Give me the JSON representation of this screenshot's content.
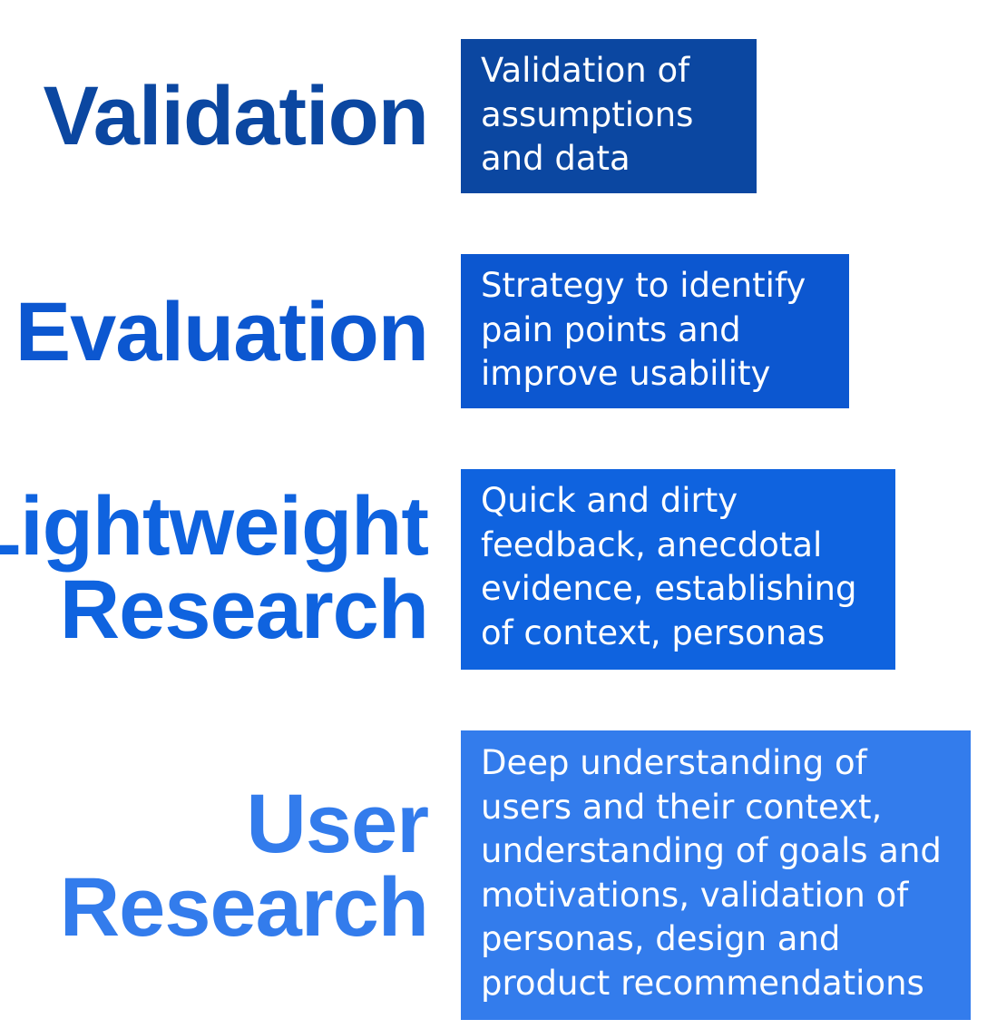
{
  "rows": [
    {
      "title_lines": [
        "Validation"
      ],
      "description_lines": [
        "Validation of",
        "assumptions",
        "and data"
      ],
      "color": "#0b47a1"
    },
    {
      "title_lines": [
        "Evaluation"
      ],
      "description_lines": [
        "Strategy to identify",
        "pain points and",
        "improve usability"
      ],
      "color": "#0c57d0"
    },
    {
      "title_lines": [
        "Lightweight",
        "Research"
      ],
      "description_lines": [
        "Quick and dirty",
        "feedback, anecdotal",
        "evidence, establishing",
        "of context, personas"
      ],
      "color": "#0f63df"
    },
    {
      "title_lines": [
        "User",
        "Research"
      ],
      "description_lines": [
        "Deep understanding of",
        "users and their context,",
        "understanding of goals and",
        "motivations, validation of",
        "personas, design and",
        "product recommendations"
      ],
      "color": "#337cec"
    }
  ]
}
